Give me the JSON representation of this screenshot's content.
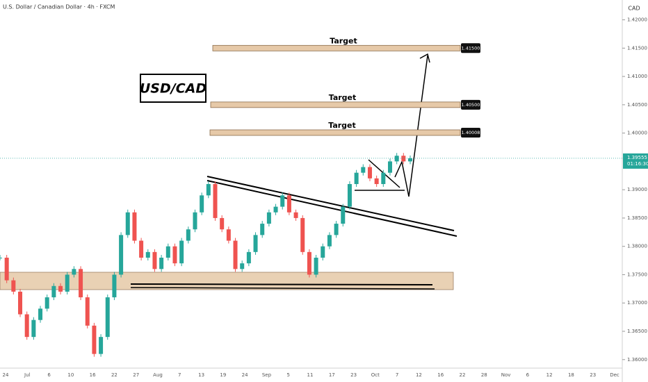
{
  "chart_data": {
    "type": "candlestick",
    "title": "U.S. Dollar / Canadian Dollar · 4h · FXCM",
    "currency": "CAD",
    "symbol_label": "USD/CAD",
    "closes": [
      1.378,
      1.374,
      1.372,
      1.368,
      1.364,
      1.367,
      1.369,
      1.371,
      1.373,
      1.372,
      1.375,
      1.376,
      1.371,
      1.366,
      1.361,
      1.364,
      1.371,
      1.375,
      1.382,
      1.386,
      1.381,
      1.378,
      1.379,
      1.376,
      1.378,
      1.38,
      1.377,
      1.381,
      1.383,
      1.386,
      1.389,
      1.391,
      1.385,
      1.383,
      1.381,
      1.376,
      1.377,
      1.379,
      1.382,
      1.384,
      1.386,
      1.387,
      1.389,
      1.386,
      1.385,
      1.379,
      1.375,
      1.378,
      1.38,
      1.382,
      1.384,
      1.387,
      1.391,
      1.393,
      1.394,
      1.392,
      1.391,
      1.393,
      1.395,
      1.396,
      1.395,
      1.39555
    ],
    "ylim": [
      1.3585,
      1.4235
    ],
    "yticks": [
      {
        "value": 1.42,
        "label": "1.42000"
      },
      {
        "value": 1.415,
        "label": "1.41500"
      },
      {
        "value": 1.41,
        "label": "1.41000"
      },
      {
        "value": 1.405,
        "label": "1.40500"
      },
      {
        "value": 1.4,
        "label": "1.40000"
      },
      {
        "value": 1.39,
        "label": "1.39000"
      },
      {
        "value": 1.385,
        "label": "1.38500"
      },
      {
        "value": 1.38,
        "label": "1.38000"
      },
      {
        "value": 1.375,
        "label": "1.37500"
      },
      {
        "value": 1.37,
        "label": "1.37000"
      },
      {
        "value": 1.365,
        "label": "1.36500"
      },
      {
        "value": 1.36,
        "label": "1.36000"
      }
    ],
    "x_labels": [
      "24",
      "Jul",
      "6",
      "10",
      "16",
      "22",
      "27",
      "Aug",
      "7",
      "13",
      "19",
      "24",
      "Sep",
      "5",
      "11",
      "17",
      "23",
      "Oct",
      "7",
      "12",
      "16",
      "22",
      "28",
      "Nov",
      "6",
      "12",
      "18",
      "23",
      "Dec"
    ],
    "current_price": {
      "value": 1.39555,
      "label": "1.39555"
    },
    "countdown": "01:16:30",
    "targets": [
      {
        "label": "Target",
        "price": {
          "value": 1.415,
          "label": "1.41500"
        }
      },
      {
        "label": "Target",
        "price": {
          "value": 1.405,
          "label": "1.40500"
        }
      },
      {
        "label": "Target",
        "price": {
          "value": 1.40008,
          "label": "1.40008"
        }
      }
    ],
    "up_color": "#26a69a",
    "down_color": "#ef5350"
  }
}
